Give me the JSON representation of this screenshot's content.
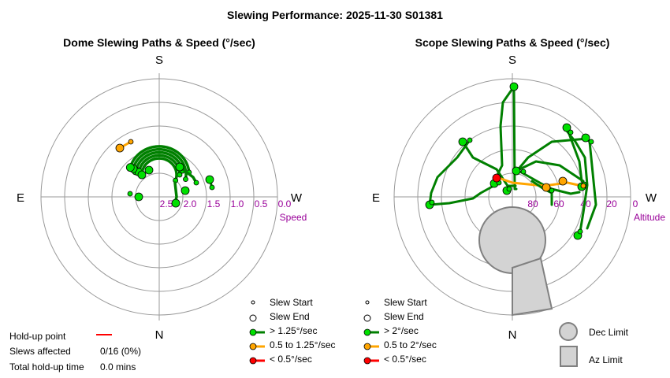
{
  "title": "Slewing Performance: 2025-11-30 S01381",
  "chart_data": [
    {
      "type": "polar",
      "title": "Dome Slewing Paths & Speed (°/sec)",
      "compass": {
        "top": "S",
        "bottom": "N",
        "left": "E",
        "right": "W"
      },
      "radial_label": "Speed",
      "radial_ticks": [
        "2.5",
        "2.0",
        "1.5",
        "1.0",
        "0.5",
        "0.0"
      ],
      "legend": [
        {
          "label": "Slew Start",
          "marker": "small-circle"
        },
        {
          "label": "Slew End",
          "marker": "circle"
        },
        {
          "label": "> 1.25°/sec",
          "color": "#008000",
          "marker_color": "#00e000"
        },
        {
          "label": "0.5 to 1.25°/sec",
          "color": "#ffa500",
          "marker_color": "#ffa500"
        },
        {
          "label": "< 0.5°/sec",
          "color": "#ff0000",
          "marker_color": "#ff0000"
        }
      ],
      "holdup": {
        "point_label": "Hold-up point",
        "point_color": "#ff0000",
        "slews_label": "Slews affected",
        "slews_value": "0/16 (0%)",
        "time_label": "Total hold-up time",
        "time_value": "0.0 mins"
      }
    },
    {
      "type": "polar",
      "title": "Scope Slewing Paths & Speed (°/sec)",
      "compass": {
        "top": "S",
        "bottom": "N",
        "left": "E",
        "right": "W"
      },
      "radial_label": "Altitude",
      "radial_ticks": [
        "80",
        "60",
        "40",
        "20",
        "0"
      ],
      "legend": [
        {
          "label": "Slew Start",
          "marker": "small-circle"
        },
        {
          "label": "Slew End",
          "marker": "circle"
        },
        {
          "label": "> 2°/sec",
          "color": "#008000",
          "marker_color": "#00e000"
        },
        {
          "label": "0.5 to 2°/sec",
          "color": "#ffa500",
          "marker_color": "#ffa500"
        },
        {
          "label": "< 0.5°/sec",
          "color": "#ff0000",
          "marker_color": "#ff0000"
        }
      ],
      "limits": [
        {
          "label": "Dec Limit",
          "shape": "circle"
        },
        {
          "label": "Az Limit",
          "shape": "rect"
        }
      ]
    }
  ]
}
